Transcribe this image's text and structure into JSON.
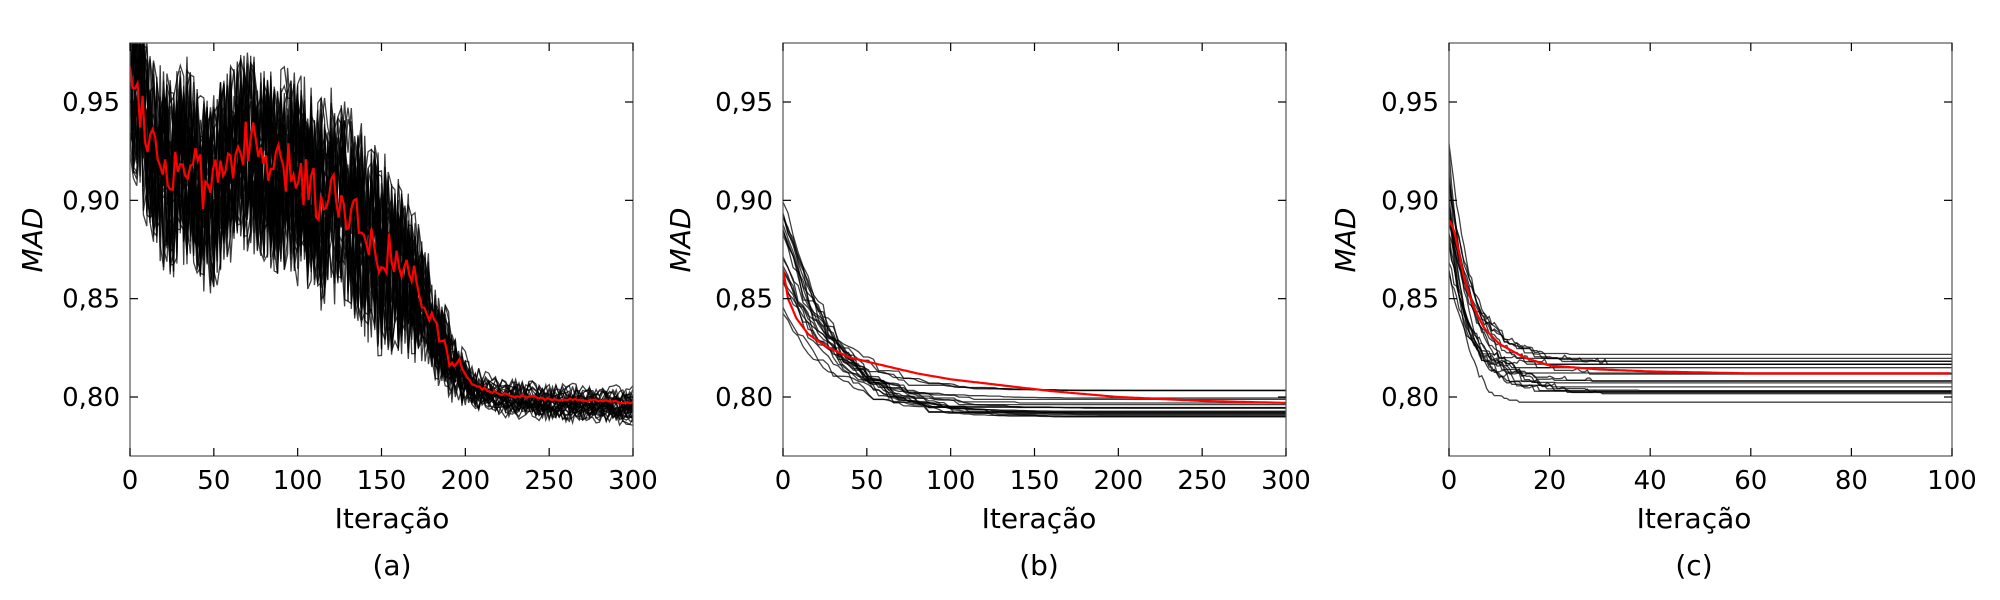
{
  "chart_data": [
    {
      "type": "line",
      "panel_label": "(a)",
      "xlabel": "Iteração",
      "ylabel": "MAD",
      "xlim": [
        0,
        300
      ],
      "ylim": [
        0.77,
        0.98
      ],
      "xticks": [
        0,
        50,
        100,
        150,
        200,
        250,
        300
      ],
      "xtick_labels": [
        "0",
        "50",
        "100",
        "150",
        "200",
        "250",
        "300"
      ],
      "yticks": [
        0.8,
        0.85,
        0.9,
        0.95
      ],
      "ytick_labels": [
        "0,80",
        "0,85",
        "0,90",
        "0,95"
      ],
      "grid": false,
      "legend": "none",
      "colors": {
        "runs": "#000000",
        "mean": "#ff0000"
      },
      "series": [
        {
          "role": "runs",
          "count": 30,
          "x": [
            0,
            50,
            100,
            150,
            175,
            200,
            225,
            250,
            300
          ],
          "band_low": [
            0.83,
            0.82,
            0.82,
            0.83,
            0.81,
            0.79,
            0.785,
            0.782,
            0.78
          ],
          "band_high": [
            0.98,
            0.98,
            0.98,
            0.96,
            0.87,
            0.82,
            0.815,
            0.812,
            0.81
          ]
        },
        {
          "role": "mean",
          "x": [
            0,
            2,
            8,
            15,
            25,
            35,
            45,
            55,
            65,
            75,
            85,
            95,
            105,
            115,
            125,
            135,
            145,
            155,
            165,
            175,
            185,
            195,
            205,
            215,
            225,
            250,
            275,
            300
          ],
          "y": [
            0.975,
            0.96,
            0.945,
            0.925,
            0.915,
            0.92,
            0.905,
            0.915,
            0.93,
            0.925,
            0.915,
            0.915,
            0.91,
            0.9,
            0.905,
            0.89,
            0.88,
            0.87,
            0.865,
            0.85,
            0.83,
            0.815,
            0.806,
            0.803,
            0.801,
            0.799,
            0.798,
            0.797
          ]
        }
      ]
    },
    {
      "type": "line",
      "panel_label": "(b)",
      "xlabel": "Iteração",
      "ylabel": "MAD",
      "xlim": [
        0,
        300
      ],
      "ylim": [
        0.77,
        0.98
      ],
      "xticks": [
        0,
        50,
        100,
        150,
        200,
        250,
        300
      ],
      "xtick_labels": [
        "0",
        "50",
        "100",
        "150",
        "200",
        "250",
        "300"
      ],
      "yticks": [
        0.8,
        0.85,
        0.9,
        0.95
      ],
      "ytick_labels": [
        "0,80",
        "0,85",
        "0,90",
        "0,95"
      ],
      "grid": false,
      "legend": "none",
      "colors": {
        "runs": "#000000",
        "mean": "#ff0000"
      },
      "series": [
        {
          "role": "runs",
          "count": 20,
          "x": [
            0,
            10,
            25,
            50,
            100,
            150,
            200,
            250,
            300
          ],
          "band_low": [
            0.83,
            0.82,
            0.815,
            0.81,
            0.802,
            0.796,
            0.792,
            0.79,
            0.788
          ],
          "band_high": [
            0.905,
            0.85,
            0.84,
            0.83,
            0.815,
            0.81,
            0.806,
            0.805,
            0.804
          ]
        },
        {
          "role": "mean",
          "x": [
            0,
            3,
            8,
            15,
            25,
            40,
            60,
            80,
            100,
            130,
            160,
            200,
            250,
            300
          ],
          "y": [
            0.865,
            0.85,
            0.84,
            0.832,
            0.826,
            0.82,
            0.816,
            0.812,
            0.809,
            0.806,
            0.803,
            0.8,
            0.798,
            0.797
          ]
        }
      ]
    },
    {
      "type": "line",
      "panel_label": "(c)",
      "xlabel": "Iteração",
      "ylabel": "MAD",
      "xlim": [
        0,
        100
      ],
      "ylim": [
        0.77,
        0.98
      ],
      "xticks": [
        0,
        20,
        40,
        60,
        80,
        100
      ],
      "xtick_labels": [
        "0",
        "20",
        "40",
        "60",
        "80",
        "100"
      ],
      "yticks": [
        0.8,
        0.85,
        0.9,
        0.95
      ],
      "ytick_labels": [
        "0,80",
        "0,85",
        "0,90",
        "0,95"
      ],
      "grid": false,
      "legend": "none",
      "colors": {
        "runs": "#000000",
        "mean": "#ff0000"
      },
      "series": [
        {
          "role": "runs",
          "count": 20,
          "x0_range": [
            0.86,
            0.93
          ],
          "final_range": [
            0.797,
            0.822
          ]
        },
        {
          "role": "mean",
          "x": [
            0,
            1,
            2,
            3,
            5,
            7,
            10,
            15,
            20,
            30,
            40,
            60,
            80,
            100
          ],
          "y": [
            0.89,
            0.885,
            0.873,
            0.86,
            0.845,
            0.835,
            0.827,
            0.82,
            0.816,
            0.814,
            0.813,
            0.812,
            0.812,
            0.812
          ]
        }
      ]
    }
  ]
}
